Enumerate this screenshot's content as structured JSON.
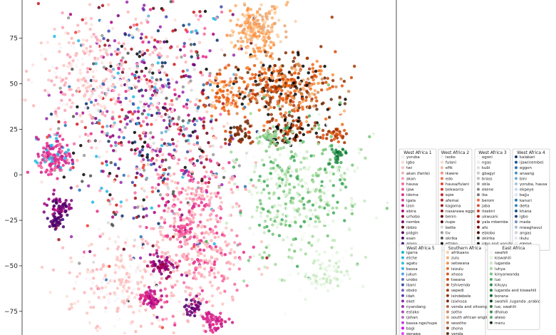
{
  "chart_data": {
    "type": "scatter",
    "title": "",
    "xlabel": "",
    "ylabel": "",
    "grid": false,
    "ylim": [
      -88,
      96
    ],
    "y_ticks": [
      75,
      50,
      25,
      0,
      -25,
      -50,
      -75
    ],
    "y_tick_labels": [
      "75",
      "50",
      "25",
      "0",
      "−25",
      "−50",
      "−75"
    ],
    "legend_placement": "right",
    "legend_groups": [
      {
        "title": "West Africa 1",
        "entries": [
          {
            "label": "yoruba",
            "color": "#f7f4f9"
          },
          {
            "label": "igbo",
            "color": "#fde0dd"
          },
          {
            "label": "twi",
            "color": "#fcc5c0"
          },
          {
            "label": "akan (fante)",
            "color": "#fbb4b9"
          },
          {
            "label": "akan",
            "color": "#fa9fb5"
          },
          {
            "label": "hausa",
            "color": "#f768a1"
          },
          {
            "label": "ijaw",
            "color": "#f25ba0"
          },
          {
            "label": "idoma",
            "color": "#e7298a"
          },
          {
            "label": "igala",
            "color": "#dd3497"
          },
          {
            "label": "izon",
            "color": "#c51b8a"
          },
          {
            "label": "ebira",
            "color": "#ae017e"
          },
          {
            "label": "urhobo",
            "color": "#980043"
          },
          {
            "label": "nembe",
            "color": "#7a0177"
          },
          {
            "label": "ibibio",
            "color": "#67001f"
          },
          {
            "label": "pidgin",
            "color": "#5a0060"
          },
          {
            "label": "esan",
            "color": "#49006a"
          },
          {
            "label": "alago",
            "color": "#3f007d"
          }
        ]
      },
      {
        "title": "West Africa 2",
        "entries": [
          {
            "label": "isoko",
            "color": "#fff5f0"
          },
          {
            "label": "fulani",
            "color": "#fee0d2"
          },
          {
            "label": "efik",
            "color": "#fcbba1"
          },
          {
            "label": "ikwere",
            "color": "#fc9272"
          },
          {
            "label": "edo",
            "color": "#fb6a4a"
          },
          {
            "label": "hausa/fulani",
            "color": "#ef3b2c"
          },
          {
            "label": "bekwarra",
            "color": "#e02a22"
          },
          {
            "label": "epie",
            "color": "#cb181d"
          },
          {
            "label": "afemai",
            "color": "#bd1519"
          },
          {
            "label": "kagoma",
            "color": "#a50f15"
          },
          {
            "label": "nasarawa eggon",
            "color": "#920c12"
          },
          {
            "label": "benin",
            "color": "#67000d"
          },
          {
            "label": "nupe",
            "color": "#4d000a"
          },
          {
            "label": "bette",
            "color": "#d9d9d9"
          },
          {
            "label": "tiv",
            "color": "#969696"
          },
          {
            "label": "okrika",
            "color": "#525252"
          },
          {
            "label": "ettako",
            "color": "#000000"
          }
        ]
      },
      {
        "title": "West Africa 3",
        "entries": [
          {
            "label": "ogoni",
            "color": "#ffffff"
          },
          {
            "label": "ngas",
            "color": "#f0f0f0"
          },
          {
            "label": "kubi",
            "color": "#e0e0e0"
          },
          {
            "label": "gbagyi",
            "color": "#cccccc"
          },
          {
            "label": "brass",
            "color": "#bdbdbd"
          },
          {
            "label": "okla",
            "color": "#a5a5a5"
          },
          {
            "label": "ekene",
            "color": "#8a8a8a"
          },
          {
            "label": "ika",
            "color": "#737373"
          },
          {
            "label": "berom",
            "color": "#f46d43"
          },
          {
            "label": "jaba",
            "color": "#e34a33"
          },
          {
            "label": "itsekiri",
            "color": "#d7301f"
          },
          {
            "label": "ukwuani",
            "color": "#b30000"
          },
          {
            "label": "yala mbembe",
            "color": "#990000"
          },
          {
            "label": "afo",
            "color": "#7f0000"
          },
          {
            "label": "ebiobo",
            "color": "#3d0000"
          },
          {
            "label": "okirika",
            "color": "#2b2b2b"
          },
          {
            "label": "igbo and yoruba",
            "color": "#111111"
          }
        ]
      },
      {
        "title": "West Africa 4",
        "entries": [
          {
            "label": "kalabari",
            "color": "#08306b"
          },
          {
            "label": "ijaw(nembe)",
            "color": "#08519c"
          },
          {
            "label": "eggon",
            "color": "#2171b5"
          },
          {
            "label": "anaang",
            "color": "#4292c6"
          },
          {
            "label": "bini",
            "color": "#6baed6"
          },
          {
            "label": "yoruba, hausa",
            "color": "#9ecae1"
          },
          {
            "label": "ekpeye",
            "color": "#c6dbef"
          },
          {
            "label": "bajju",
            "color": "#deebf7"
          },
          {
            "label": "kanuri",
            "color": "#1f78b4"
          },
          {
            "label": "delta",
            "color": "#3182bd"
          },
          {
            "label": "khana",
            "color": "#0b4f8a"
          },
          {
            "label": "igbo",
            "color": "#1c3f7a"
          },
          {
            "label": "mada",
            "color": "#6a8ec0"
          },
          {
            "label": "mwaghavul",
            "color": "#a6bddb"
          },
          {
            "label": "angas",
            "color": "#d0d1e6"
          },
          {
            "label": "ikulu",
            "color": "#ece7f2"
          },
          {
            "label": "eleme",
            "color": "#f1eef6"
          }
        ]
      },
      {
        "title": "West Africa 5",
        "entries": [
          {
            "label": "igarra",
            "color": "#00bcd4"
          },
          {
            "label": "etche",
            "color": "#1fb8e6"
          },
          {
            "label": "agatu",
            "color": "#26c6da"
          },
          {
            "label": "bassa",
            "color": "#29b6f6"
          },
          {
            "label": "jukun",
            "color": "#42a5f5"
          },
          {
            "label": "urobo",
            "color": "#5c6bc0"
          },
          {
            "label": "ibani",
            "color": "#3949ab"
          },
          {
            "label": "obolo",
            "color": "#7e57c2"
          },
          {
            "label": "idah",
            "color": "#5e35b1"
          },
          {
            "label": "eket",
            "color": "#8e24aa"
          },
          {
            "label": "nyandang",
            "color": "#9c27b0"
          },
          {
            "label": "estako",
            "color": "#ab47bc"
          },
          {
            "label": "ijshan",
            "color": "#ba68c8"
          },
          {
            "label": "bassa-nge/nupe",
            "color": "#c040e0"
          },
          {
            "label": "bagi",
            "color": "#d500f9"
          },
          {
            "label": "gerawa",
            "color": "#e040fb"
          }
        ]
      },
      {
        "title": "Southern Africa",
        "entries": [
          {
            "label": "afrikaans",
            "color": "#fdd0a2"
          },
          {
            "label": "zulu",
            "color": "#fdae6b"
          },
          {
            "label": "setswana",
            "color": "#fd8d3c"
          },
          {
            "label": "isizulu",
            "color": "#f16913"
          },
          {
            "label": "xhosa",
            "color": "#e6550d"
          },
          {
            "label": "tswana",
            "color": "#d94801"
          },
          {
            "label": "tshivenda",
            "color": "#c2571f"
          },
          {
            "label": "sepedi",
            "color": "#a63603"
          },
          {
            "label": "isindebele",
            "color": "#8c2d04"
          },
          {
            "label": "isixhosa",
            "color": "#7f2704"
          },
          {
            "label": "venda and xitsonga",
            "color": "#b5653a"
          },
          {
            "label": "sotho",
            "color": "#d18a55"
          },
          {
            "label": "south african english",
            "color": "#e7a977"
          },
          {
            "label": "sesotho",
            "color": "#cc7a3e"
          },
          {
            "label": "shona",
            "color": "#8b4a1f"
          },
          {
            "label": "venda",
            "color": "#5e2e0e"
          }
        ]
      },
      {
        "title": "East Africa",
        "entries": [
          {
            "label": "swahili",
            "color": "#f7fcf5"
          },
          {
            "label": "kiswahili",
            "color": "#e5f5e0"
          },
          {
            "label": "luganda",
            "color": "#c7e9c0"
          },
          {
            "label": "luhya",
            "color": "#a1d99b"
          },
          {
            "label": "kinyarwanda",
            "color": "#74c476"
          },
          {
            "label": "luo",
            "color": "#41ab5d"
          },
          {
            "label": "kikuyu",
            "color": "#238b45"
          },
          {
            "label": "luganda and kiswahili",
            "color": "#1a7a3a"
          },
          {
            "label": "borana",
            "color": "#006d2c"
          },
          {
            "label": "swahili ,luganda ,arabic",
            "color": "#00441b"
          },
          {
            "label": "luo, swahili",
            "color": "#2f6f3e"
          },
          {
            "label": "dholuo",
            "color": "#3a8a4a"
          },
          {
            "label": "ateso",
            "color": "#55a868"
          },
          {
            "label": "meru",
            "color": "#0d2b14"
          }
        ]
      }
    ],
    "clusters": [
      {
        "region": "West Africa",
        "x": -30,
        "y": 30,
        "sx": 20,
        "sy": 38,
        "n": 900,
        "colors": [
          "#fde0dd",
          "#fcc5c0",
          "#fbb4b9",
          "#fa9fb5",
          "#f768a1",
          "#e7298a",
          "#ae017e",
          "#7a0177",
          "#67001f",
          "#cb181d",
          "#a50f15",
          "#08306b",
          "#2171b5",
          "#6baed6",
          "#1fb8e6",
          "#9c27b0",
          "#000000",
          "#525252",
          "#969696",
          "#d9d9d9",
          "#8e24aa",
          "#3949ab",
          "#ef3b2c",
          "#49006a"
        ]
      },
      {
        "region": "West Africa",
        "x": -60,
        "y": 55,
        "sx": 12,
        "sy": 15,
        "n": 250,
        "colors": [
          "#fde0dd",
          "#fcc5c0",
          "#fbb4b9",
          "#f7f4f9",
          "#fa9fb5"
        ]
      },
      {
        "region": "West Africa",
        "x": -8,
        "y": -35,
        "sx": 11,
        "sy": 24,
        "n": 500,
        "colors": [
          "#fbb4b9",
          "#fa9fb5",
          "#fcc5c0",
          "#f768a1",
          "#e7298a"
        ]
      },
      {
        "region": "West Africa",
        "x": -45,
        "y": -60,
        "sx": 12,
        "sy": 12,
        "n": 220,
        "colors": [
          "#fde0dd",
          "#fcc5c0",
          "#f7f4f9",
          "#fbb4b9"
        ]
      },
      {
        "region": "West Africa",
        "x": -75,
        "y": 10,
        "sx": 4,
        "sy": 5,
        "n": 140,
        "colors": [
          "#f768a1",
          "#e7298a",
          "#dd3497",
          "#c51b8a",
          "#1fb8e6"
        ]
      },
      {
        "region": "West Africa",
        "x": -72,
        "y": -18,
        "sx": 3,
        "sy": 3,
        "n": 60,
        "colors": [
          "#ae017e",
          "#7a0177",
          "#49006a"
        ]
      },
      {
        "region": "West Africa",
        "x": -74,
        "y": -26,
        "sx": 2,
        "sy": 2,
        "n": 30,
        "colors": [
          "#49006a",
          "#3f007d",
          "#5a0060"
        ]
      },
      {
        "region": "West Africa",
        "x": -30,
        "y": -68,
        "sx": 3,
        "sy": 3,
        "n": 60,
        "colors": [
          "#e7298a",
          "#c51b8a",
          "#ae017e"
        ]
      },
      {
        "region": "West Africa",
        "x": 0,
        "y": -80,
        "sx": 3,
        "sy": 3,
        "n": 60,
        "colors": [
          "#e7298a",
          "#dd3497",
          "#c51b8a"
        ]
      },
      {
        "region": "West Africa",
        "x": -10,
        "y": -72,
        "sx": 2,
        "sy": 2,
        "n": 30,
        "colors": [
          "#7a0177",
          "#49006a"
        ]
      },
      {
        "region": "West Africa",
        "x": -25,
        "y": -50,
        "sx": 3,
        "sy": 3,
        "n": 50,
        "colors": [
          "#ae017e",
          "#980043",
          "#7a0177"
        ]
      },
      {
        "region": "West Africa",
        "x": -15,
        "y": -30,
        "sx": 2,
        "sy": 2,
        "n": 30,
        "colors": [
          "#e7298a",
          "#f768a1"
        ]
      },
      {
        "region": "Southern Africa",
        "x": 20,
        "y": 80,
        "sx": 6,
        "sy": 7,
        "n": 220,
        "colors": [
          "#fdd0a2",
          "#fdae6b",
          "#fd8d3c",
          "#e7a977"
        ]
      },
      {
        "region": "Southern Africa",
        "x": 32,
        "y": 48,
        "sx": 12,
        "sy": 9,
        "n": 420,
        "colors": [
          "#fdae6b",
          "#fd8d3c",
          "#f16913",
          "#e6550d",
          "#d94801",
          "#a63603",
          "#8c2d04",
          "#000000",
          "#5e2e0e",
          "#d18a55"
        ]
      },
      {
        "region": "Southern Africa",
        "x": 4,
        "y": 44,
        "sx": 4,
        "sy": 5,
        "n": 70,
        "colors": [
          "#fdae6b",
          "#f16913",
          "#e6550d"
        ]
      },
      {
        "region": "Southern Africa",
        "x": 36,
        "y": 24,
        "sx": 6,
        "sy": 4,
        "n": 90,
        "colors": [
          "#d94801",
          "#a63603",
          "#8c2d04",
          "#000000"
        ]
      },
      {
        "region": "Southern Africa",
        "x": 12,
        "y": 22,
        "sx": 3,
        "sy": 3,
        "n": 40,
        "colors": [
          "#a63603",
          "#7f2704",
          "#5e2e0e"
        ]
      },
      {
        "region": "Southern Africa",
        "x": 56,
        "y": 22,
        "sx": 3,
        "sy": 2,
        "n": 30,
        "colors": [
          "#e6550d",
          "#a63603"
        ]
      },
      {
        "region": "East Africa",
        "x": 38,
        "y": -10,
        "sx": 15,
        "sy": 20,
        "n": 500,
        "colors": [
          "#f7fcf5",
          "#e5f5e0",
          "#c7e9c0",
          "#a1d99b",
          "#74c476",
          "#41ab5d"
        ]
      },
      {
        "region": "East Africa",
        "x": 52,
        "y": -55,
        "sx": 6,
        "sy": 5,
        "n": 90,
        "colors": [
          "#e5f5e0",
          "#c7e9c0",
          "#f7fcf5"
        ]
      },
      {
        "region": "East Africa",
        "x": 58,
        "y": 10,
        "sx": 2,
        "sy": 2,
        "n": 25,
        "colors": [
          "#238b45",
          "#41ab5d",
          "#006d2c"
        ]
      },
      {
        "region": "East Africa",
        "x": 25,
        "y": 21,
        "sx": 3,
        "sy": 2,
        "n": 30,
        "colors": [
          "#a1d99b",
          "#74c476"
        ]
      }
    ]
  }
}
